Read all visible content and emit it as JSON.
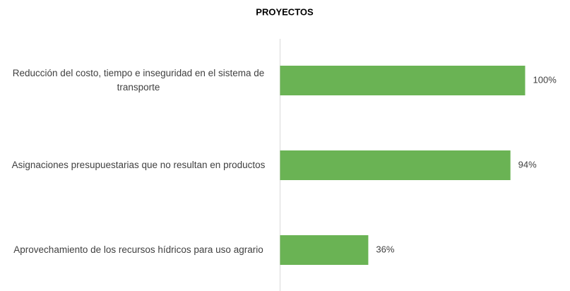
{
  "chart_data": {
    "type": "barh",
    "title": "PROYECTOS",
    "categories": [
      "Reducción del costo, tiempo e inseguridad en el sistema de transporte",
      "Asignaciones presupuestarias que no resultan en productos",
      "Aprovechamiento de los recursos hídricos para uso agrario"
    ],
    "values": [
      100,
      94,
      36
    ],
    "value_labels": [
      "100%",
      "94%",
      "36%"
    ],
    "color": "#6ab354"
  }
}
